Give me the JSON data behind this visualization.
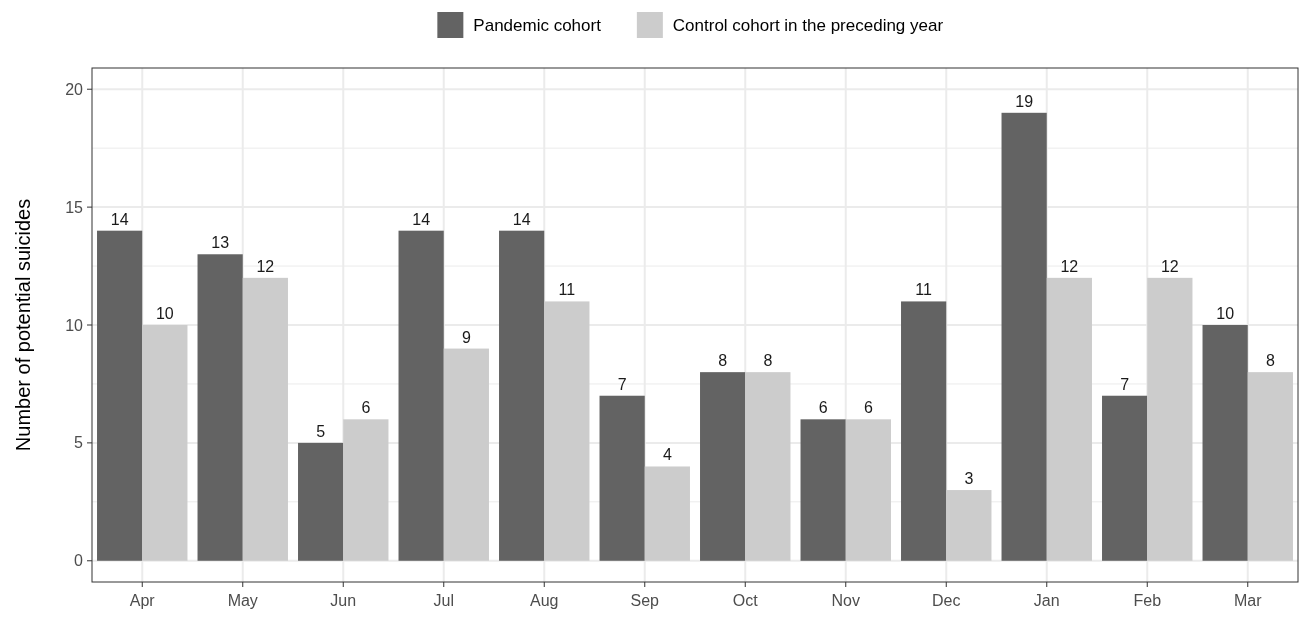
{
  "chart_data": {
    "type": "bar",
    "ylabel": "Number of potential suicides",
    "categories": [
      "Apr",
      "May",
      "Jun",
      "Jul",
      "Aug",
      "Sep",
      "Oct",
      "Nov",
      "Dec",
      "Jan",
      "Feb",
      "Mar"
    ],
    "series": [
      {
        "name": "Pandemic cohort",
        "color": "#636363",
        "values": [
          14,
          13,
          5,
          14,
          14,
          7,
          8,
          6,
          11,
          19,
          7,
          10
        ]
      },
      {
        "name": "Control cohort in the preceding year",
        "color": "#cccccc",
        "values": [
          10,
          12,
          6,
          9,
          11,
          4,
          8,
          6,
          3,
          12,
          12,
          8
        ]
      }
    ],
    "ylim": [
      -0.9,
      20.9
    ],
    "yticks": [
      0,
      5,
      10,
      15,
      20
    ],
    "grid": true,
    "legend": "top",
    "data_labels": true
  }
}
